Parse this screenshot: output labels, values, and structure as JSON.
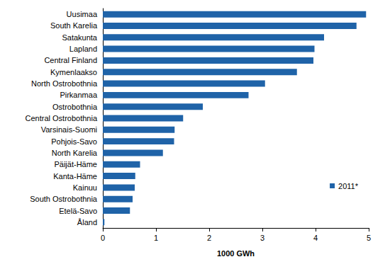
{
  "chart_data": {
    "type": "bar",
    "orientation": "horizontal",
    "x_label": "1000 GWh",
    "categories": [
      "Uusimaa",
      "South Karelia",
      "Satakunta",
      "Lapland",
      "Central Finland",
      "Kymenlaakso",
      "North Ostrobothnia",
      "Pirkanmaa",
      "Ostrobothnia",
      "Central Ostrobothnia",
      "Varsinais-Suomi",
      "Pohjois-Savo",
      "North Karelia",
      "Päijät-Häme",
      "Kanta-Häme",
      "Kainuu",
      "South Ostrobothnia",
      "Etelä-Savo",
      "Åland"
    ],
    "series": [
      {
        "name": "2011*",
        "color": "#1f63a8",
        "values": [
          4.95,
          4.77,
          4.16,
          3.98,
          3.96,
          3.65,
          3.05,
          2.74,
          1.88,
          1.51,
          1.35,
          1.34,
          1.13,
          0.7,
          0.61,
          0.6,
          0.56,
          0.51,
          0.03
        ]
      }
    ],
    "xlim": [
      0,
      5
    ],
    "xticks": [
      0,
      1,
      2,
      3,
      4,
      5
    ],
    "grid": false,
    "legend": "right"
  }
}
